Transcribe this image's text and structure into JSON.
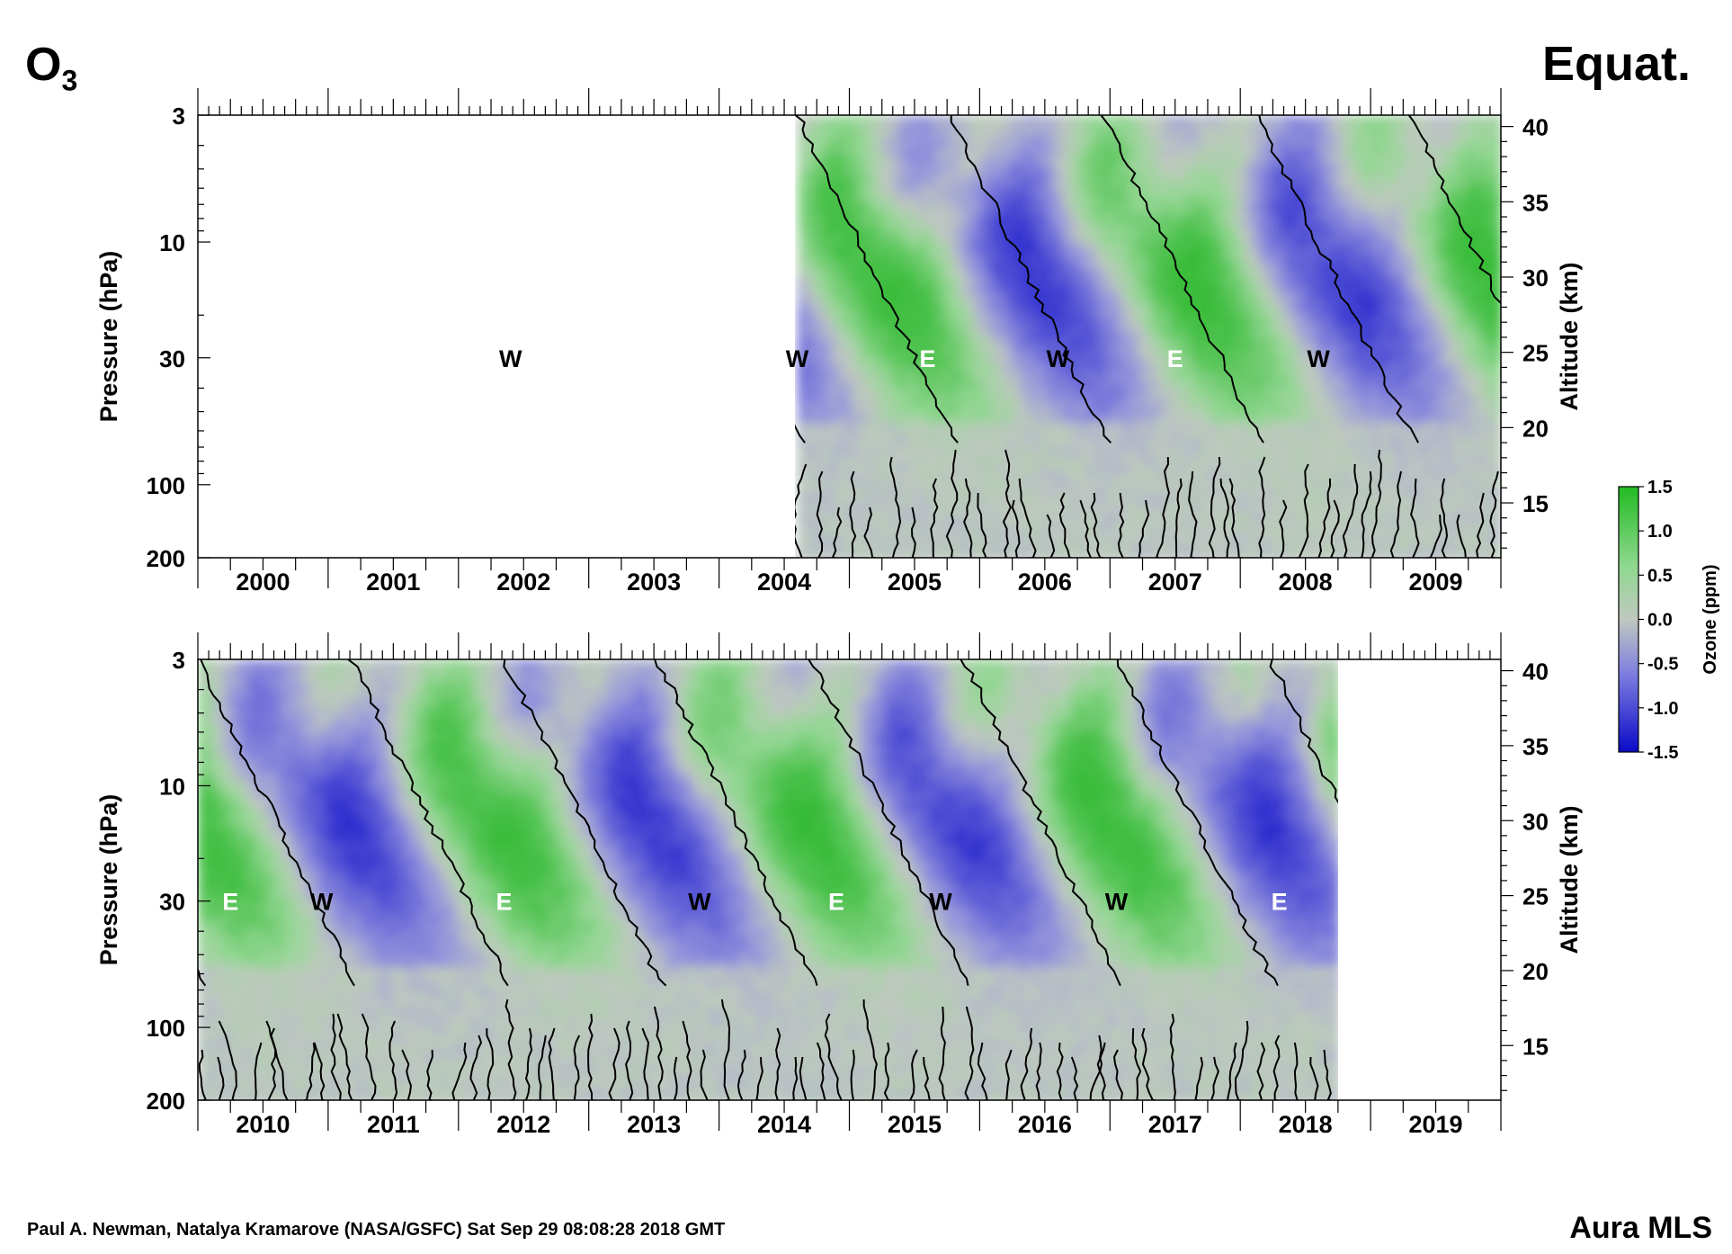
{
  "header": {
    "species_main": "O",
    "species_sub": "3",
    "region": "Equat."
  },
  "footer": {
    "credit": "Paul A. Newman, Natalya Kramarove (NASA/GSFC) Sat Sep 29 08:08:28 2018 GMT",
    "instrument": "Aura MLS"
  },
  "colors": {
    "positive": "#3fbf3f",
    "neutral": "#c0c8c0",
    "negative": "#1a1acc",
    "contour": "#000000"
  },
  "chart_data": [
    {
      "type": "heatmap",
      "panel": "top",
      "ylabel": "Pressure (hPa)",
      "y2label": "Altitude (km)",
      "y_ticks": [
        3,
        10,
        30,
        100,
        200
      ],
      "y2_ticks": [
        15,
        20,
        25,
        30,
        35,
        40
      ],
      "x_tick_labels": [
        "2000",
        "2001",
        "2002",
        "2003",
        "2004",
        "2005",
        "2006",
        "2007",
        "2008",
        "2009"
      ],
      "xlim": [
        2000.0,
        2010.0
      ],
      "ylim": [
        200,
        3
      ],
      "y_scale": "log",
      "data_start": 2004.6,
      "data_end": 2010.0,
      "annotations": [
        {
          "text": "W",
          "x": 2002.4,
          "p": 30,
          "color": "black"
        },
        {
          "text": "W",
          "x": 2004.6,
          "p": 30,
          "color": "black"
        },
        {
          "text": "E",
          "x": 2005.6,
          "p": 30,
          "color": "white"
        },
        {
          "text": "W",
          "x": 2006.6,
          "p": 30,
          "color": "black"
        },
        {
          "text": "E",
          "x": 2007.5,
          "p": 30,
          "color": "white"
        },
        {
          "text": "W",
          "x": 2008.6,
          "p": 30,
          "color": "black"
        }
      ]
    },
    {
      "type": "heatmap",
      "panel": "bottom",
      "ylabel": "Pressure (hPa)",
      "y2label": "Altitude (km)",
      "y_ticks": [
        3,
        10,
        30,
        100,
        200
      ],
      "y2_ticks": [
        15,
        20,
        25,
        30,
        35,
        40
      ],
      "x_tick_labels": [
        "2010",
        "2011",
        "2012",
        "2013",
        "2014",
        "2015",
        "2016",
        "2017",
        "2018",
        "2019"
      ],
      "xlim": [
        2010.0,
        2020.0
      ],
      "ylim": [
        200,
        3
      ],
      "y_scale": "log",
      "data_start": 2010.0,
      "data_end": 2018.75,
      "annotations": [
        {
          "text": "E",
          "x": 2010.25,
          "p": 30,
          "color": "white"
        },
        {
          "text": "W",
          "x": 2010.95,
          "p": 30,
          "color": "black"
        },
        {
          "text": "E",
          "x": 2012.35,
          "p": 30,
          "color": "white"
        },
        {
          "text": "W",
          "x": 2013.85,
          "p": 30,
          "color": "black"
        },
        {
          "text": "E",
          "x": 2014.9,
          "p": 30,
          "color": "white"
        },
        {
          "text": "W",
          "x": 2015.7,
          "p": 30,
          "color": "black"
        },
        {
          "text": "W",
          "x": 2017.05,
          "p": 30,
          "color": "black"
        },
        {
          "text": "E",
          "x": 2018.3,
          "p": 30,
          "color": "white"
        }
      ]
    }
  ],
  "colorbar": {
    "label": "Ozone (ppm)",
    "ticks": [
      "1.5",
      "1.0",
      "0.5",
      "0.0",
      "-0.5",
      "-1.0",
      "-1.5"
    ],
    "range": [
      -1.5,
      1.5
    ]
  }
}
